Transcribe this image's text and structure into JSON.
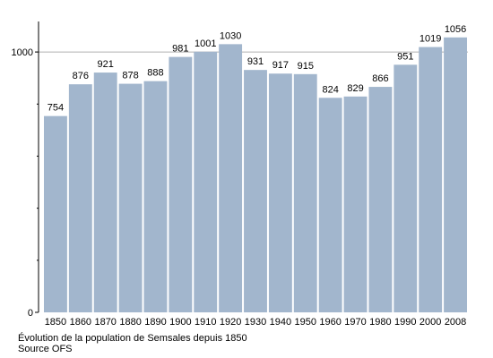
{
  "chart_data": {
    "type": "bar",
    "categories": [
      "1850",
      "1860",
      "1870",
      "1880",
      "1890",
      "1900",
      "1910",
      "1920",
      "1930",
      "1940",
      "1950",
      "1960",
      "1970",
      "1980",
      "1990",
      "2000",
      "2008"
    ],
    "values": [
      754,
      876,
      921,
      878,
      888,
      981,
      1001,
      1030,
      931,
      917,
      915,
      824,
      829,
      866,
      951,
      1019,
      1056
    ],
    "ylim": [
      0,
      1100
    ],
    "yticks": [
      0,
      1000
    ],
    "bar_color": "#a2b6cd",
    "gridline_value": 1000,
    "grid": false,
    "legend": "none"
  },
  "caption": {
    "title": "Évolution de la population de Semsales depuis 1850",
    "source": "Source OFS"
  }
}
